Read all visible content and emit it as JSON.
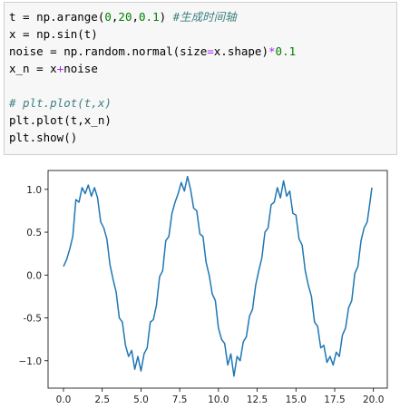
{
  "code_cell": {
    "lines": [
      [
        {
          "text": "t = np.arange(",
          "color": "#000000"
        },
        {
          "text": "0",
          "color": "#008000"
        },
        {
          "text": ",",
          "color": "#000000"
        },
        {
          "text": "20",
          "color": "#008000"
        },
        {
          "text": ",",
          "color": "#000000"
        },
        {
          "text": "0.1",
          "color": "#008000"
        },
        {
          "text": ") ",
          "color": "#000000"
        },
        {
          "text": "#生成时间轴",
          "color": "#408080",
          "italic": true
        }
      ],
      [
        {
          "text": "x = np.sin(t)",
          "color": "#000000"
        }
      ],
      [
        {
          "text": "noise = np.random.normal(size",
          "color": "#000000"
        },
        {
          "text": "=",
          "color": "#aa22ff"
        },
        {
          "text": "x.shape)",
          "color": "#000000"
        },
        {
          "text": "*",
          "color": "#aa22ff"
        },
        {
          "text": "0.1",
          "color": "#008000"
        }
      ],
      [
        {
          "text": "x_n = x",
          "color": "#000000"
        },
        {
          "text": "+",
          "color": "#aa22ff"
        },
        {
          "text": "noise",
          "color": "#000000"
        }
      ],
      [],
      [
        {
          "text": "# plt.plot(t,x)",
          "color": "#408080",
          "italic": true
        }
      ],
      [
        {
          "text": "plt.plot(t,x_n)",
          "color": "#000000"
        }
      ],
      [
        {
          "text": "plt.show()",
          "color": "#000000"
        }
      ]
    ]
  },
  "chart_data": {
    "type": "line",
    "x": [
      0,
      0.2,
      0.4,
      0.6,
      0.8,
      1.0,
      1.2,
      1.4,
      1.6,
      1.8,
      2.0,
      2.2,
      2.4,
      2.6,
      2.8,
      3.0,
      3.2,
      3.4,
      3.6,
      3.8,
      4.0,
      4.2,
      4.4,
      4.6,
      4.8,
      5.0,
      5.2,
      5.4,
      5.6,
      5.8,
      6.0,
      6.2,
      6.4,
      6.6,
      6.8,
      7.0,
      7.2,
      7.4,
      7.6,
      7.8,
      8.0,
      8.2,
      8.4,
      8.6,
      8.8,
      9.0,
      9.2,
      9.4,
      9.6,
      9.8,
      10.0,
      10.2,
      10.4,
      10.6,
      10.8,
      11.0,
      11.2,
      11.4,
      11.6,
      11.8,
      12.0,
      12.2,
      12.4,
      12.6,
      12.8,
      13.0,
      13.2,
      13.4,
      13.6,
      13.8,
      14.0,
      14.2,
      14.4,
      14.6,
      14.8,
      15.0,
      15.2,
      15.4,
      15.6,
      15.8,
      16.0,
      16.2,
      16.4,
      16.6,
      16.8,
      17.0,
      17.2,
      17.4,
      17.6,
      17.8,
      18.0,
      18.2,
      18.4,
      18.6,
      18.8,
      19.0,
      19.2,
      19.4,
      19.6,
      19.8,
      19.9
    ],
    "series": [
      {
        "color": "#1f77b4",
        "values": [
          0.1,
          0.18,
          0.3,
          0.45,
          0.88,
          0.85,
          1.02,
          0.95,
          1.05,
          0.92,
          1.02,
          0.9,
          0.62,
          0.55,
          0.42,
          0.12,
          -0.05,
          -0.2,
          -0.5,
          -0.55,
          -0.82,
          -0.95,
          -0.88,
          -1.1,
          -0.95,
          -1.12,
          -0.92,
          -0.85,
          -0.55,
          -0.52,
          -0.35,
          -0.02,
          0.05,
          0.4,
          0.45,
          0.72,
          0.85,
          0.95,
          1.08,
          0.98,
          1.15,
          1.0,
          0.78,
          0.75,
          0.48,
          0.45,
          0.15,
          0.0,
          -0.22,
          -0.3,
          -0.62,
          -0.75,
          -0.8,
          -1.05,
          -0.92,
          -1.18,
          -0.95,
          -1.0,
          -0.78,
          -0.72,
          -0.48,
          -0.4,
          -0.12,
          0.05,
          0.2,
          0.5,
          0.55,
          0.82,
          0.85,
          1.02,
          0.9,
          1.1,
          0.92,
          0.98,
          0.72,
          0.7,
          0.42,
          0.35,
          0.05,
          -0.12,
          -0.25,
          -0.55,
          -0.6,
          -0.85,
          -0.82,
          -1.02,
          -0.95,
          -1.05,
          -0.9,
          -0.95,
          -0.7,
          -0.62,
          -0.38,
          -0.3,
          0.02,
          0.1,
          0.4,
          0.55,
          0.62,
          0.88,
          1.02
        ]
      }
    ],
    "xlim": [
      -0.995,
      20.895
    ],
    "xticks": [
      {
        "value": 0,
        "label": "0.0"
      },
      2.5,
      {
        "value": 5,
        "label": "5.0"
      },
      7.5,
      {
        "value": 10,
        "label": "10.0"
      },
      12.5,
      {
        "value": 15,
        "label": "15.0"
      },
      17.5,
      {
        "value": 20,
        "label": "20.0"
      }
    ],
    "ylim": [
      -1.32,
      1.22
    ],
    "yticks": [
      {
        "value": -1,
        "label": "−1.0"
      },
      -0.5,
      {
        "value": 0,
        "label": "0.0"
      },
      0.5,
      {
        "value": 1,
        "label": "1.0"
      }
    ]
  }
}
